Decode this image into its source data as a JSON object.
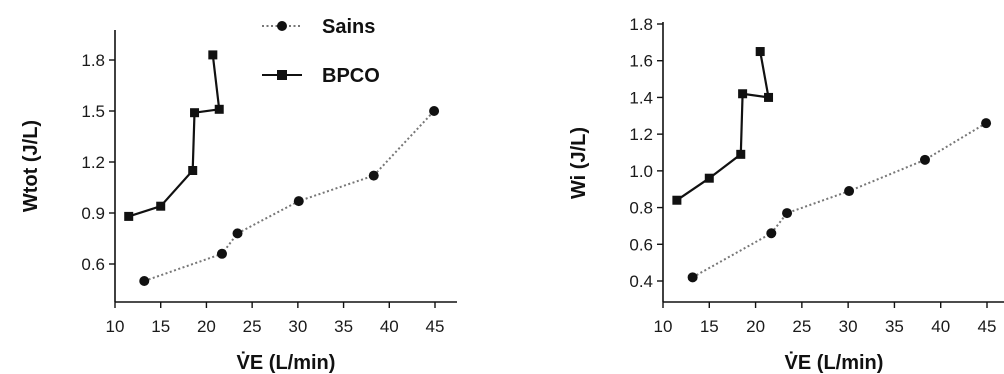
{
  "chart_data": [
    {
      "type": "line",
      "xlabel": "V̇E (L/min)",
      "ylabel": "Wtot (J/L)",
      "xlim": [
        10,
        47
      ],
      "ylim": [
        0.42,
        1.95
      ],
      "xticks": [
        "10",
        "15",
        "20",
        "25",
        "30",
        "35",
        "40",
        "45"
      ],
      "yticks": [
        "0.6",
        "0.9",
        "1.2",
        "1.5",
        "1.8"
      ],
      "legend": "top-center",
      "series": [
        {
          "name": "Sains",
          "marker": "circle",
          "style": "dotted",
          "color": "#111111",
          "x": [
            13.2,
            21.7,
            23.4,
            30.1,
            38.3,
            44.9
          ],
          "y": [
            0.5,
            0.66,
            0.78,
            0.97,
            1.12,
            1.5
          ]
        },
        {
          "name": "BPCO",
          "marker": "square",
          "style": "solid",
          "color": "#111111",
          "x": [
            11.5,
            15.0,
            18.5,
            18.7,
            21.4,
            20.7
          ],
          "y": [
            0.88,
            0.94,
            1.15,
            1.49,
            1.51,
            1.83
          ]
        }
      ]
    },
    {
      "type": "line",
      "xlabel": "V̇E (L/min)",
      "ylabel": "Wi (J/L)",
      "xlim": [
        10,
        47
      ],
      "ylim": [
        0.35,
        1.8
      ],
      "xticks": [
        "10",
        "15",
        "20",
        "25",
        "30",
        "35",
        "40",
        "45"
      ],
      "yticks": [
        "0.4",
        "0.6",
        "0.8",
        "1.0",
        "1.2",
        "1.4",
        "1.6",
        "1.8"
      ],
      "series": [
        {
          "name": "Sains",
          "marker": "circle",
          "style": "dotted",
          "color": "#111111",
          "x": [
            13.2,
            21.7,
            23.4,
            30.1,
            38.3,
            44.9
          ],
          "y": [
            0.42,
            0.66,
            0.77,
            0.89,
            1.06,
            1.26
          ]
        },
        {
          "name": "BPCO",
          "marker": "square",
          "style": "solid",
          "color": "#111111",
          "x": [
            11.5,
            15.0,
            18.4,
            18.6,
            21.4,
            20.5
          ],
          "y": [
            0.84,
            0.96,
            1.09,
            1.42,
            1.4,
            1.65
          ]
        }
      ]
    }
  ]
}
